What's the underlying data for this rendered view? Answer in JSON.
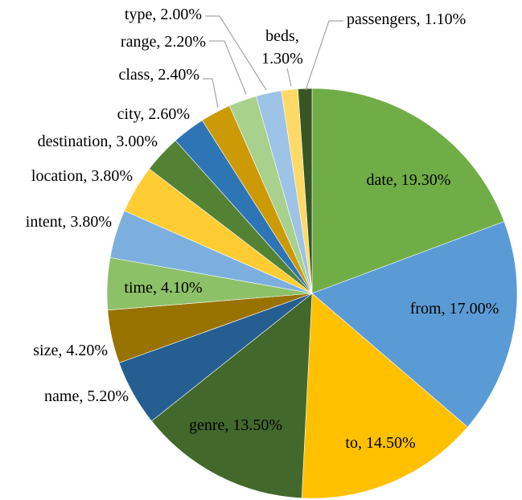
{
  "chart_data": {
    "type": "pie",
    "title": "",
    "slices": [
      {
        "name": "date",
        "value": 19.3,
        "label": "date, 19.30%",
        "color": "#70ad47"
      },
      {
        "name": "from",
        "value": 17.0,
        "label": "from, 17.00%",
        "color": "#5b9bd5"
      },
      {
        "name": "to",
        "value": 14.5,
        "label": "to, 14.50%",
        "color": "#ffc000"
      },
      {
        "name": "genre",
        "value": 13.5,
        "label": "genre, 13.50%",
        "color": "#43682b"
      },
      {
        "name": "name",
        "value": 5.2,
        "label": "name, 5.20%",
        "color": "#255e91"
      },
      {
        "name": "size",
        "value": 4.2,
        "label": "size, 4.20%",
        "color": "#997300"
      },
      {
        "name": "time",
        "value": 4.1,
        "label": "time, 4.10%",
        "color": "#8cc168"
      },
      {
        "name": "intent",
        "value": 3.8,
        "label": "intent, 3.80%",
        "color": "#7cafdd"
      },
      {
        "name": "location",
        "value": 3.8,
        "label": "location, 3.80%",
        "color": "#ffcd33"
      },
      {
        "name": "destination",
        "value": 3.0,
        "label": "destination, 3.00%",
        "color": "#548235"
      },
      {
        "name": "city",
        "value": 2.6,
        "label": "city, 2.60%",
        "color": "#2e75b6"
      },
      {
        "name": "class",
        "value": 2.4,
        "label": "class, 2.40%",
        "color": "#cc9a06"
      },
      {
        "name": "range",
        "value": 2.2,
        "label": "range, 2.20%",
        "color": "#a9d18e"
      },
      {
        "name": "type",
        "value": 2.0,
        "label": "type, 2.00%",
        "color": "#9dc3e6"
      },
      {
        "name": "beds",
        "value": 1.3,
        "label": "beds, 1.30%",
        "color": "#ffd966"
      },
      {
        "name": "passengers",
        "value": 1.1,
        "label": "passengers, 1.10%",
        "color": "#375623"
      }
    ]
  }
}
